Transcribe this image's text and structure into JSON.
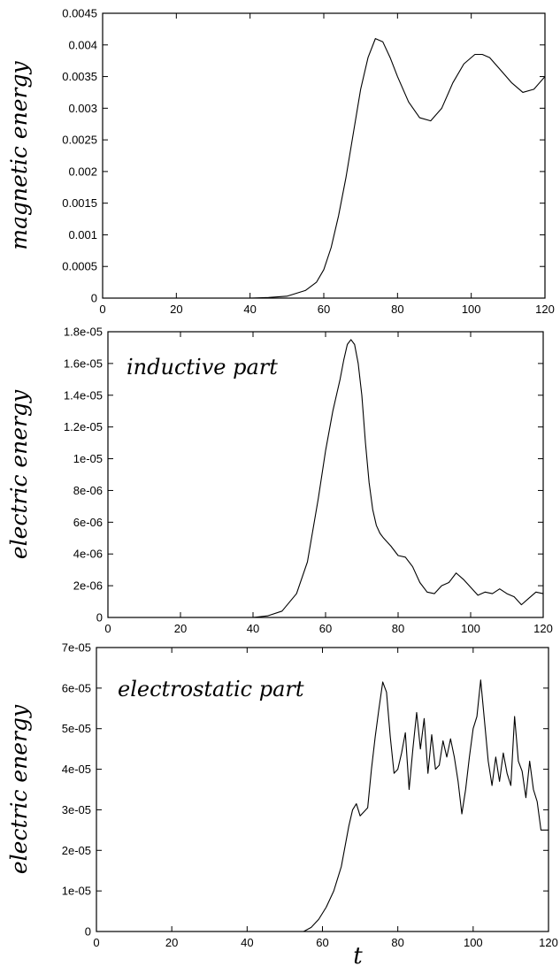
{
  "chart_data": [
    {
      "type": "line",
      "title": "",
      "xlabel": "",
      "ylabel": "magnetic energy",
      "annotation": "",
      "xlim": [
        0,
        120
      ],
      "ylim": [
        0,
        0.0045
      ],
      "x_ticks": [
        0,
        20,
        40,
        60,
        80,
        100,
        120
      ],
      "y_ticks": [
        0,
        0.0005,
        0.001,
        0.0015,
        0.002,
        0.0025,
        0.003,
        0.0035,
        0.004,
        0.0045
      ],
      "x_tick_labels": [
        "0",
        "20",
        "40",
        "60",
        "80",
        "100",
        "120"
      ],
      "y_tick_labels": [
        "0",
        "0.0005",
        "0.001",
        "0.0015",
        "0.002",
        "0.0025",
        "0.003",
        "0.0035",
        "0.004",
        "0.0045"
      ],
      "grid": false,
      "series": [
        {
          "x": [
            0,
            40,
            45,
            50,
            55,
            58,
            60,
            62,
            64,
            66,
            68,
            70,
            72,
            74,
            76,
            78,
            80,
            83,
            86,
            89,
            92,
            95,
            98,
            101,
            103,
            105,
            108,
            111,
            114,
            117,
            120
          ],
          "y": [
            0,
            0,
            1e-05,
            3e-05,
            0.00012,
            0.00025,
            0.00045,
            0.0008,
            0.0013,
            0.0019,
            0.0026,
            0.0033,
            0.0038,
            0.0041,
            0.00405,
            0.0038,
            0.0035,
            0.0031,
            0.00285,
            0.0028,
            0.003,
            0.0034,
            0.0037,
            0.00385,
            0.00385,
            0.0038,
            0.0036,
            0.0034,
            0.00325,
            0.0033,
            0.0035
          ]
        }
      ]
    },
    {
      "type": "line",
      "title": "",
      "xlabel": "",
      "ylabel": "electric energy",
      "annotation": "inductive part",
      "xlim": [
        0,
        120
      ],
      "ylim": [
        0,
        1.8e-05
      ],
      "x_ticks": [
        0,
        20,
        40,
        60,
        80,
        100,
        120
      ],
      "y_ticks": [
        0,
        2e-06,
        4e-06,
        6e-06,
        8e-06,
        1e-05,
        1.2e-05,
        1.4e-05,
        1.6e-05,
        1.8e-05
      ],
      "x_tick_labels": [
        "0",
        "20",
        "40",
        "60",
        "80",
        "100",
        "120"
      ],
      "y_tick_labels": [
        "0",
        "2e-06",
        "4e-06",
        "6e-06",
        "8e-06",
        "1e-05",
        "1.2e-05",
        "1.4e-05",
        "1.6e-05",
        "1.8e-05"
      ],
      "grid": false,
      "series": [
        {
          "x": [
            0,
            40,
            44,
            48,
            52,
            55,
            58,
            60,
            62,
            64,
            65,
            66,
            67,
            68,
            69,
            70,
            71,
            72,
            73,
            74,
            75,
            76,
            78,
            80,
            82,
            84,
            86,
            88,
            90,
            92,
            94,
            96,
            98,
            100,
            102,
            104,
            106,
            108,
            110,
            112,
            114,
            116,
            118,
            120
          ],
          "y": [
            0,
            0,
            1e-07,
            4e-07,
            1.5e-06,
            3.5e-06,
            7.5e-06,
            1.05e-05,
            1.3e-05,
            1.5e-05,
            1.62e-05,
            1.72e-05,
            1.75e-05,
            1.72e-05,
            1.6e-05,
            1.4e-05,
            1.1e-05,
            8.5e-06,
            6.8e-06,
            5.8e-06,
            5.3e-06,
            5e-06,
            4.5e-06,
            3.9e-06,
            3.8e-06,
            3.2e-06,
            2.2e-06,
            1.6e-06,
            1.5e-06,
            2e-06,
            2.2e-06,
            2.8e-06,
            2.4e-06,
            1.9e-06,
            1.4e-06,
            1.6e-06,
            1.5e-06,
            1.8e-06,
            1.5e-06,
            1.3e-06,
            8e-07,
            1.2e-06,
            1.6e-06,
            1.5e-06
          ]
        }
      ]
    },
    {
      "type": "line",
      "title": "",
      "xlabel": "t",
      "ylabel": "electric energy",
      "annotation": "electrostatic part",
      "xlim": [
        0,
        120
      ],
      "ylim": [
        0,
        7e-05
      ],
      "x_ticks": [
        0,
        20,
        40,
        60,
        80,
        100,
        120
      ],
      "y_ticks": [
        0,
        1e-05,
        2e-05,
        3e-05,
        4e-05,
        5e-05,
        6e-05,
        7e-05
      ],
      "x_tick_labels": [
        "0",
        "20",
        "40",
        "60",
        "80",
        "100",
        "120"
      ],
      "y_tick_labels": [
        "0",
        "1e-05",
        "2e-05",
        "3e-05",
        "4e-05",
        "5e-05",
        "6e-05",
        "7e-05"
      ],
      "grid": false,
      "series": [
        {
          "x": [
            0,
            55,
            57,
            59,
            61,
            63,
            65,
            67,
            68,
            69,
            70,
            71,
            72,
            73,
            74,
            75,
            76,
            77,
            78,
            79,
            80,
            81,
            82,
            83,
            84,
            85,
            86,
            87,
            88,
            89,
            90,
            91,
            92,
            93,
            94,
            95,
            96,
            97,
            98,
            99,
            100,
            101,
            102,
            103,
            104,
            105,
            106,
            107,
            108,
            109,
            110,
            111,
            112,
            113,
            114,
            115,
            116,
            117,
            118,
            119,
            120
          ],
          "y": [
            0,
            0,
            1e-06,
            3e-06,
            6e-06,
            1e-05,
            1.6e-05,
            2.6e-05,
            3e-05,
            3.15e-05,
            2.85e-05,
            2.95e-05,
            3.05e-05,
            4e-05,
            4.8e-05,
            5.5e-05,
            6.15e-05,
            5.9e-05,
            4.8e-05,
            3.9e-05,
            4e-05,
            4.4e-05,
            4.9e-05,
            3.5e-05,
            4.5e-05,
            5.4e-05,
            4.5e-05,
            5.25e-05,
            3.9e-05,
            4.85e-05,
            4e-05,
            4.1e-05,
            4.7e-05,
            4.3e-05,
            4.75e-05,
            4.3e-05,
            3.7e-05,
            2.9e-05,
            3.5e-05,
            4.3e-05,
            5e-05,
            5.3e-05,
            6.2e-05,
            5.2e-05,
            4.2e-05,
            3.6e-05,
            4.3e-05,
            3.7e-05,
            4.4e-05,
            3.9e-05,
            3.6e-05,
            5.3e-05,
            4.2e-05,
            3.95e-05,
            3.3e-05,
            4.2e-05,
            3.5e-05,
            3.2e-05,
            2.5e-05,
            2.5e-05,
            2.5e-05
          ]
        }
      ]
    }
  ]
}
